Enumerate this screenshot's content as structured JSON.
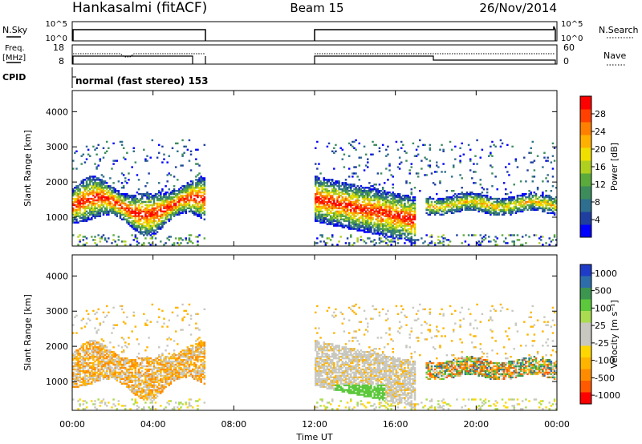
{
  "header": {
    "station": "Hankasalmi (fitACF)",
    "beam": "Beam 15",
    "date": "26/Nov/2014"
  },
  "status_panels": {
    "nsky_label": "N.Sky",
    "nsearch_label": "N.Search",
    "nsky_ticks": [
      "10^5",
      "10^0"
    ],
    "nsearch_ticks": [
      "10^5",
      "10^0"
    ],
    "freq_label_1": "Freq.",
    "freq_label_2": "[MHz]",
    "freq_ticks": [
      "18",
      "8"
    ],
    "nave_label": "Nave",
    "nave_ticks": [
      "60",
      "0"
    ],
    "cpid_label": "CPID",
    "cpid_text": "normal (fast stereo) 153"
  },
  "colors": {
    "power_scale": [
      "#0000ff",
      "#1f3fa0",
      "#2e6e8e",
      "#3d8c5c",
      "#5aaa3c",
      "#b0d020",
      "#f0e000",
      "#ffb000",
      "#ff7f00",
      "#ff4000",
      "#ff0000"
    ],
    "velocity_scale": [
      "#ff0000",
      "#ff5a00",
      "#ff8c00",
      "#ffb400",
      "#ffd700",
      "#c8c8c0",
      "#c8c8c0",
      "#aadc50",
      "#5cc83c",
      "#3c9650",
      "#2d6eaa",
      "#1e3cc8"
    ]
  },
  "chart_data": [
    {
      "type": "heatmap",
      "name": "power",
      "ylabel": "Slant Range [km]",
      "xlabel": "",
      "ylim": [
        180,
        4600
      ],
      "yticks": [
        "1000",
        "2000",
        "3000",
        "4000"
      ],
      "colorbar_label": "Power [dB]",
      "colorbar_ticks": [
        "4",
        "8",
        "12",
        "16",
        "20",
        "24",
        "28"
      ],
      "colorbar_range": [
        0,
        32
      ],
      "data_intervals_ut_hours": [
        [
          0.0,
          6.5
        ],
        [
          12.0,
          24.0
        ]
      ]
    },
    {
      "type": "heatmap",
      "name": "velocity",
      "ylabel": "Slant Range [km]",
      "xlabel": "Time UT",
      "ylim": [
        180,
        4600
      ],
      "yticks": [
        "1000",
        "2000",
        "3000",
        "4000"
      ],
      "colorbar_label": "Velocity [m s⁻¹]",
      "colorbar_ticks": [
        "1000",
        "500",
        "100",
        "25",
        "-25",
        "-100",
        "-500",
        "-1000"
      ],
      "xticks": [
        "00:00",
        "04:00",
        "08:00",
        "12:00",
        "16:00",
        "20:00",
        "00:00"
      ],
      "data_intervals_ut_hours": [
        [
          0.0,
          6.5
        ],
        [
          12.0,
          24.0
        ]
      ]
    }
  ]
}
